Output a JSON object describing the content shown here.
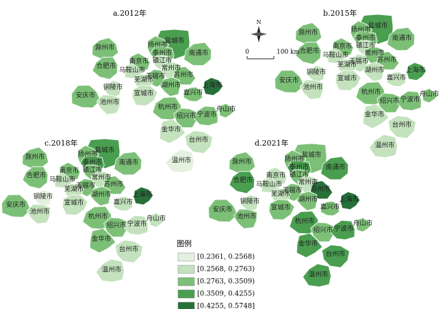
{
  "panels": [
    {
      "title": "a.2012年",
      "regions": [
        {
          "name": "盐城市",
          "class": 3
        },
        {
          "name": "滁州市",
          "class": 2
        },
        {
          "name": "扬州市",
          "class": 2
        },
        {
          "name": "泰州市",
          "class": 2
        },
        {
          "name": "南通市",
          "class": 2
        },
        {
          "name": "南京市",
          "class": 2
        },
        {
          "name": "镇江市",
          "class": 1
        },
        {
          "name": "合肥市",
          "class": 2
        },
        {
          "name": "马鞍山市",
          "class": 1
        },
        {
          "name": "常州市",
          "class": 1
        },
        {
          "name": "无锡市",
          "class": 2
        },
        {
          "name": "苏州市",
          "class": 2
        },
        {
          "name": "芜湖市",
          "class": 1
        },
        {
          "name": "铜陵市",
          "class": 1
        },
        {
          "name": "安庆市",
          "class": 2
        },
        {
          "name": "宣城市",
          "class": 1
        },
        {
          "name": "湖州市",
          "class": 2
        },
        {
          "name": "嘉兴市",
          "class": 2
        },
        {
          "name": "上海市",
          "class": 4
        },
        {
          "name": "池州市",
          "class": 1
        },
        {
          "name": "杭州市",
          "class": 2
        },
        {
          "name": "舟山市",
          "class": 2
        },
        {
          "name": "绍兴市",
          "class": 2
        },
        {
          "name": "宁波市",
          "class": 2
        },
        {
          "name": "金华市",
          "class": 1
        },
        {
          "name": "台州市",
          "class": 1
        },
        {
          "name": "温州市",
          "class": 0
        }
      ]
    },
    {
      "title": "b.2015年",
      "regions": [
        {
          "name": "盐城市",
          "class": 3
        },
        {
          "name": "滁州市",
          "class": 2
        },
        {
          "name": "扬州市",
          "class": 2
        },
        {
          "name": "泰州市",
          "class": 2
        },
        {
          "name": "南通市",
          "class": 2
        },
        {
          "name": "南京市",
          "class": 2
        },
        {
          "name": "镇江市",
          "class": 1
        },
        {
          "name": "合肥市",
          "class": 2
        },
        {
          "name": "马鞍山市",
          "class": 1
        },
        {
          "name": "常州市",
          "class": 2
        },
        {
          "name": "无锡市",
          "class": 1
        },
        {
          "name": "苏州市",
          "class": 2
        },
        {
          "name": "芜湖市",
          "class": 1
        },
        {
          "name": "铜陵市",
          "class": 1
        },
        {
          "name": "安庆市",
          "class": 2
        },
        {
          "name": "宣城市",
          "class": 1
        },
        {
          "name": "湖州市",
          "class": 1
        },
        {
          "name": "嘉兴市",
          "class": 1
        },
        {
          "name": "上海市",
          "class": 3
        },
        {
          "name": "池州市",
          "class": 1
        },
        {
          "name": "杭州市",
          "class": 2
        },
        {
          "name": "舟山市",
          "class": 2
        },
        {
          "name": "绍兴市",
          "class": 2
        },
        {
          "name": "宁波市",
          "class": 2
        },
        {
          "name": "金华市",
          "class": 1
        },
        {
          "name": "台州市",
          "class": 1
        },
        {
          "name": "温州市",
          "class": 1
        }
      ]
    },
    {
      "title": "c.2018年",
      "regions": [
        {
          "name": "盐城市",
          "class": 3
        },
        {
          "name": "滁州市",
          "class": 2
        },
        {
          "name": "扬州市",
          "class": 2
        },
        {
          "name": "泰州市",
          "class": 3
        },
        {
          "name": "南通市",
          "class": 2
        },
        {
          "name": "南京市",
          "class": 2
        },
        {
          "name": "镇江市",
          "class": 2
        },
        {
          "name": "合肥市",
          "class": 2
        },
        {
          "name": "马鞍山市",
          "class": 1
        },
        {
          "name": "常州市",
          "class": 1
        },
        {
          "name": "无锡市",
          "class": 2
        },
        {
          "name": "苏州市",
          "class": 2
        },
        {
          "name": "芜湖市",
          "class": 1
        },
        {
          "name": "铜陵市",
          "class": 0
        },
        {
          "name": "安庆市",
          "class": 2
        },
        {
          "name": "宣城市",
          "class": 1
        },
        {
          "name": "湖州市",
          "class": 2
        },
        {
          "name": "嘉兴市",
          "class": 1
        },
        {
          "name": "上海市",
          "class": 4
        },
        {
          "name": "池州市",
          "class": 1
        },
        {
          "name": "杭州市",
          "class": 2
        },
        {
          "name": "舟山市",
          "class": 1
        },
        {
          "name": "绍兴市",
          "class": 2
        },
        {
          "name": "宁波市",
          "class": 1
        },
        {
          "name": "金华市",
          "class": 2
        },
        {
          "name": "台州市",
          "class": 1
        },
        {
          "name": "温州市",
          "class": 1
        }
      ]
    },
    {
      "title": "d.2021年",
      "regions": [
        {
          "name": "盐城市",
          "class": 2
        },
        {
          "name": "滁州市",
          "class": 2
        },
        {
          "name": "扬州市",
          "class": 2
        },
        {
          "name": "泰州市",
          "class": 3
        },
        {
          "name": "南通市",
          "class": 3
        },
        {
          "name": "南京市",
          "class": 1
        },
        {
          "name": "镇江市",
          "class": 2
        },
        {
          "name": "合肥市",
          "class": 3
        },
        {
          "name": "马鞍山市",
          "class": 1
        },
        {
          "name": "常州市",
          "class": 1
        },
        {
          "name": "无锡市",
          "class": 2
        },
        {
          "name": "苏州市",
          "class": 4
        },
        {
          "name": "芜湖市",
          "class": 1
        },
        {
          "name": "铜陵市",
          "class": 1
        },
        {
          "name": "安庆市",
          "class": 2
        },
        {
          "name": "宣城市",
          "class": 2
        },
        {
          "name": "湖州市",
          "class": 2
        },
        {
          "name": "嘉兴市",
          "class": 2
        },
        {
          "name": "上海市",
          "class": 4
        },
        {
          "name": "池州市",
          "class": 2
        },
        {
          "name": "杭州市",
          "class": 3
        },
        {
          "name": "舟山市",
          "class": 2
        },
        {
          "name": "绍兴市",
          "class": 2
        },
        {
          "name": "宁波市",
          "class": 3
        },
        {
          "name": "金华市",
          "class": 3
        },
        {
          "name": "台州市",
          "class": 3
        },
        {
          "name": "温州市",
          "class": 3
        }
      ]
    }
  ],
  "legend": {
    "title": "图例",
    "items": [
      {
        "label": "[0.2361, 0.2568)",
        "color": "#e4f1df"
      },
      {
        "label": "[0.2568, 0.2763)",
        "color": "#c3e2bd"
      },
      {
        "label": "[0.2763, 0.3509)",
        "color": "#7cc077"
      },
      {
        "label": "[0.3509, 0.4255)",
        "color": "#4a9e50"
      },
      {
        "label": "[0.4255, 0.5748]",
        "color": "#26703a"
      }
    ]
  },
  "compass": {
    "north": "N"
  },
  "scale": {
    "zero": "0",
    "distance": "100 km"
  }
}
